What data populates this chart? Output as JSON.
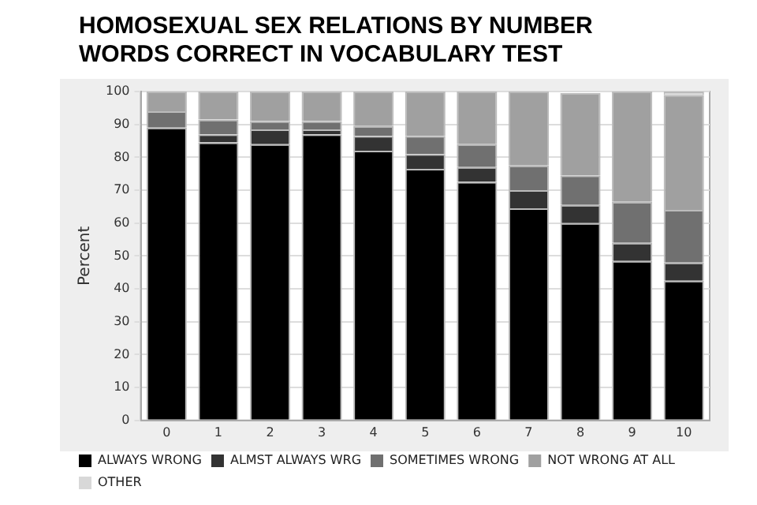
{
  "chart_data": {
    "type": "bar",
    "title": "HOMOSEXUAL SEX RELATIONS BY NUMBER WORDS CORRECT IN VOCABULARY TEST",
    "ylabel": "Percent",
    "categories": [
      "0",
      "1",
      "2",
      "3",
      "4",
      "5",
      "6",
      "7",
      "8",
      "9",
      "10"
    ],
    "stacked": true,
    "ylim": [
      0,
      100
    ],
    "yticks": [
      0,
      10,
      20,
      30,
      40,
      50,
      60,
      70,
      80,
      90,
      100
    ],
    "grid": "y",
    "legend": "bottom",
    "series": [
      {
        "name": "ALWAYS WRONG",
        "color": "#000000",
        "values": [
          89,
          84.5,
          84,
          87,
          82,
          76.5,
          72.5,
          64.5,
          60,
          48.5,
          42.5
        ]
      },
      {
        "name": "ALMST ALWAYS WRG",
        "color": "#333333",
        "values": [
          null,
          2.5,
          4.5,
          1.5,
          4.5,
          4.5,
          4.5,
          5.5,
          5.5,
          5.5,
          5.5
        ]
      },
      {
        "name": "SOMETIMES WRONG",
        "color": "#707070",
        "values": [
          5,
          4.5,
          2.5,
          2.5,
          3,
          5.5,
          7,
          7.5,
          9,
          12.5,
          16
        ]
      },
      {
        "name": "NOT WRONG AT ALL",
        "color": "#a0a0a0",
        "values": [
          6,
          8.5,
          9,
          9,
          10.5,
          13.5,
          16,
          22.5,
          25,
          33.5,
          35
        ]
      },
      {
        "name": "OTHER",
        "color": "#d8d8d8",
        "values": [
          0,
          0,
          0,
          0,
          0,
          0,
          0,
          0,
          0,
          0,
          1
        ]
      }
    ]
  }
}
